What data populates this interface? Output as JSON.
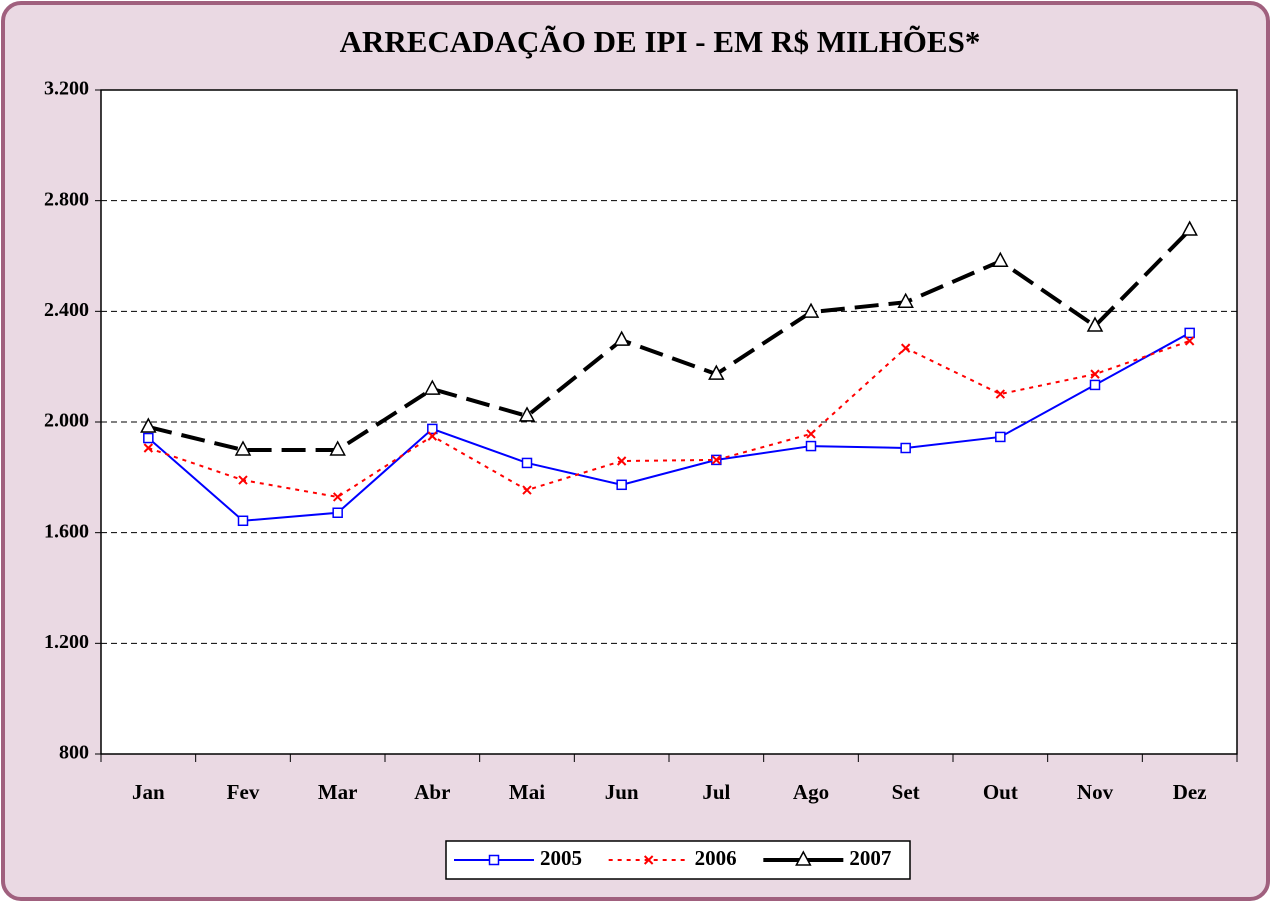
{
  "chart_data": {
    "type": "line",
    "title": "ARRECADAÇÃO DE IPI - EM R$ MILHÕES*",
    "categories": [
      "Jan",
      "Fev",
      "Mar",
      "Abr",
      "Mai",
      "Jun",
      "Jul",
      "Ago",
      "Set",
      "Out",
      "Nov",
      "Dez"
    ],
    "series": [
      {
        "name": "2005",
        "color": "#0000ff",
        "line": "solid",
        "marker": "square",
        "values": [
          1942,
          1643,
          1672,
          1975,
          1852,
          1773,
          1863,
          1913,
          1906,
          1946,
          2134,
          2322
        ]
      },
      {
        "name": "2006",
        "color": "#ff0000",
        "line": "dotted",
        "marker": "x",
        "values": [
          1906,
          1790,
          1729,
          1949,
          1754,
          1859,
          1863,
          1957,
          2267,
          2101,
          2173,
          2293
        ]
      },
      {
        "name": "2007",
        "color": "#000000",
        "line": "dashed",
        "marker": "triangle",
        "values": [
          1982,
          1899,
          1899,
          2119,
          2022,
          2296,
          2173,
          2397,
          2433,
          2581,
          2347,
          2694
        ]
      }
    ],
    "ylim": [
      800,
      3200
    ],
    "yticks": [
      {
        "value": 800,
        "label": "800"
      },
      {
        "value": 1200,
        "label": "1.200"
      },
      {
        "value": 1600,
        "label": "1.600"
      },
      {
        "value": 2000,
        "label": "2.000"
      },
      {
        "value": 2400,
        "label": "2.400"
      },
      {
        "value": 2800,
        "label": "2.800"
      },
      {
        "value": 3200,
        "label": "3.200"
      }
    ],
    "grid": true,
    "legend": "bottom"
  }
}
